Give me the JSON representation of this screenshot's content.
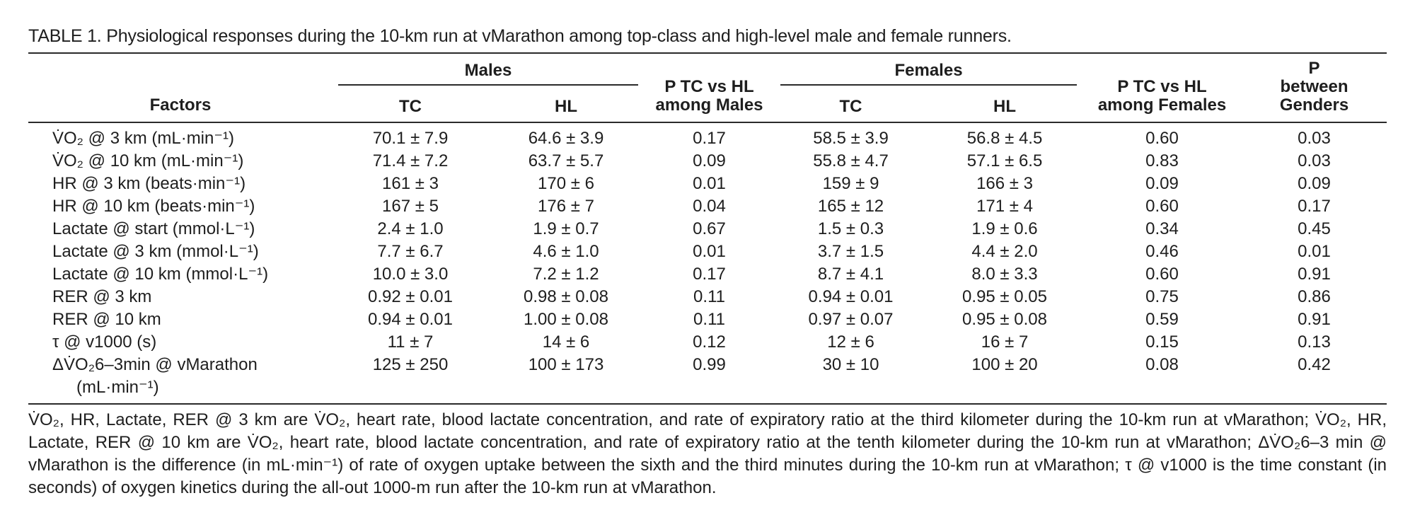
{
  "caption": "TABLE 1. Physiological responses during the 10-km run at vMarathon among top-class and high-level male and female runners.",
  "headers": {
    "factors": "Factors",
    "males": "Males",
    "females": "Females",
    "tc": "TC",
    "hl": "HL",
    "p_males_line1": "P TC vs HL",
    "p_males_line2": "among Males",
    "p_females_line1": "P TC vs HL",
    "p_females_line2": "among Females",
    "p_gender_line1": "P",
    "p_gender_line2": "between",
    "p_gender_line3": "Genders"
  },
  "rows": [
    {
      "factor": "V̇O₂ @ 3 km (mL·min⁻¹)",
      "m_tc": "70.1 ± 7.9",
      "m_hl": "64.6 ± 3.9",
      "p_m": "0.17",
      "f_tc": "58.5 ± 3.9",
      "f_hl": "56.8 ± 4.5",
      "p_f": "0.60",
      "p_g": "0.03"
    },
    {
      "factor": "V̇O₂ @ 10 km (mL·min⁻¹)",
      "m_tc": "71.4 ± 7.2",
      "m_hl": "63.7 ± 5.7",
      "p_m": "0.09",
      "f_tc": "55.8 ± 4.7",
      "f_hl": "57.1 ± 6.5",
      "p_f": "0.83",
      "p_g": "0.03"
    },
    {
      "factor": "HR @ 3 km (beats·min⁻¹)",
      "m_tc": "161 ± 3",
      "m_hl": "170 ± 6",
      "p_m": "0.01",
      "f_tc": "159 ± 9",
      "f_hl": "166 ± 3",
      "p_f": "0.09",
      "p_g": "0.09"
    },
    {
      "factor": "HR @ 10 km (beats·min⁻¹)",
      "m_tc": "167 ± 5",
      "m_hl": "176 ± 7",
      "p_m": "0.04",
      "f_tc": "165 ± 12",
      "f_hl": "171 ± 4",
      "p_f": "0.60",
      "p_g": "0.17"
    },
    {
      "factor": "Lactate @ start (mmol·L⁻¹)",
      "m_tc": "2.4 ± 1.0",
      "m_hl": "1.9 ± 0.7",
      "p_m": "0.67",
      "f_tc": "1.5 ± 0.3",
      "f_hl": "1.9 ± 0.6",
      "p_f": "0.34",
      "p_g": "0.45"
    },
    {
      "factor": "Lactate @ 3 km (mmol·L⁻¹)",
      "m_tc": "7.7 ± 6.7",
      "m_hl": "4.6 ± 1.0",
      "p_m": "0.01",
      "f_tc": "3.7 ± 1.5",
      "f_hl": "4.4 ± 2.0",
      "p_f": "0.46",
      "p_g": "0.01"
    },
    {
      "factor": "Lactate @ 10 km (mmol·L⁻¹)",
      "m_tc": "10.0 ± 3.0",
      "m_hl": "7.2 ± 1.2",
      "p_m": "0.17",
      "f_tc": "8.7 ± 4.1",
      "f_hl": "8.0 ± 3.3",
      "p_f": "0.60",
      "p_g": "0.91"
    },
    {
      "factor": "RER @ 3 km",
      "m_tc": "0.92 ± 0.01",
      "m_hl": "0.98 ± 0.08",
      "p_m": "0.11",
      "f_tc": "0.94 ± 0.01",
      "f_hl": "0.95 ± 0.05",
      "p_f": "0.75",
      "p_g": "0.86"
    },
    {
      "factor": "RER @ 10 km",
      "m_tc": "0.94 ± 0.01",
      "m_hl": "1.00 ± 0.08",
      "p_m": "0.11",
      "f_tc": "0.97 ± 0.07",
      "f_hl": "0.95 ± 0.08",
      "p_f": "0.59",
      "p_g": "0.91"
    },
    {
      "factor": "τ @ v1000 (s)",
      "m_tc": "11 ± 7",
      "m_hl": "14 ± 6",
      "p_m": "0.12",
      "f_tc": "12 ± 6",
      "f_hl": "16 ± 7",
      "p_f": "0.15",
      "p_g": "0.13"
    },
    {
      "factor": "ΔV̇O₂6–3min @ vMarathon",
      "factor_line2": "(mL·min⁻¹)",
      "m_tc": "125 ± 250",
      "m_hl": "100 ± 173",
      "p_m": "0.99",
      "f_tc": "30 ± 10",
      "f_hl": "100 ± 20",
      "p_f": "0.08",
      "p_g": "0.42"
    }
  ],
  "footnote": "V̇O₂, HR, Lactate, RER @ 3 km are V̇O₂, heart rate, blood lactate concentration, and rate of expiratory ratio at the third kilometer during the 10-km run at vMarathon; V̇O₂, HR, Lactate, RER @ 10 km are V̇O₂, heart rate, blood lactate concentration, and rate of expiratory ratio at the tenth kilometer during the 10-km run at vMarathon; ΔV̇O₂6–3 min @ vMarathon is the difference (in mL·min⁻¹) of rate of oxygen uptake between the sixth and the third minutes during the 10-km run at vMarathon; τ @ v1000 is the time constant (in seconds) of oxygen kinetics during the all-out 1000-m run after the 10-km run at vMarathon."
}
